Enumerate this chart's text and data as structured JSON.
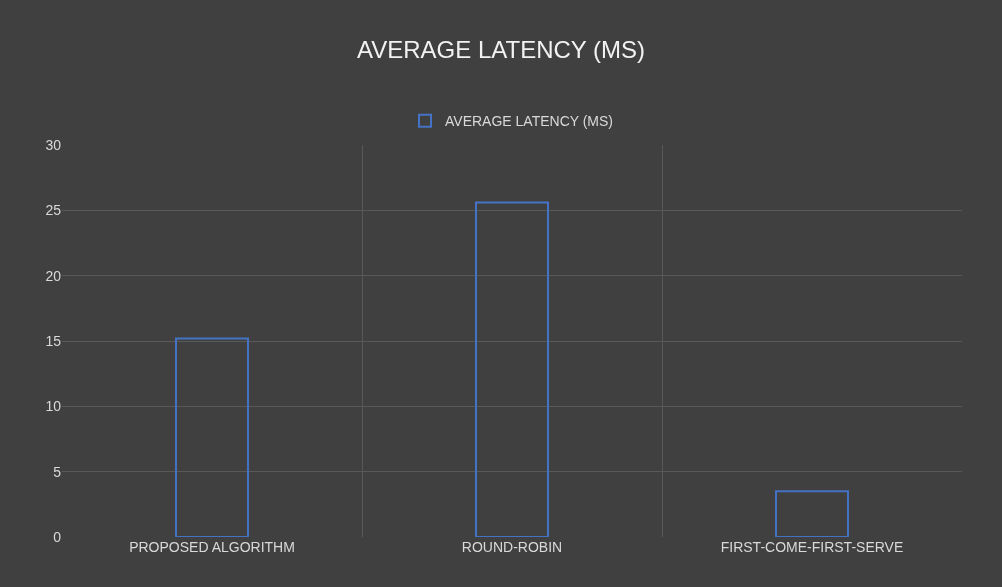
{
  "chart_data": {
    "type": "bar",
    "title": "AVERAGE LATENCY (MS)",
    "categories": [
      "PROPOSED ALGORITHM",
      "ROUND-ROBIN",
      "FIRST-COME-FIRST-SERVE"
    ],
    "series": [
      {
        "name": "AVERAGE LATENCY (MS)",
        "color": "#4472c4",
        "values": [
          15.2,
          25.6,
          3.5
        ]
      }
    ],
    "ylim": [
      0,
      30
    ],
    "yticks": [
      0,
      5,
      10,
      15,
      20,
      25,
      30
    ],
    "grid": true,
    "legend": "top"
  }
}
